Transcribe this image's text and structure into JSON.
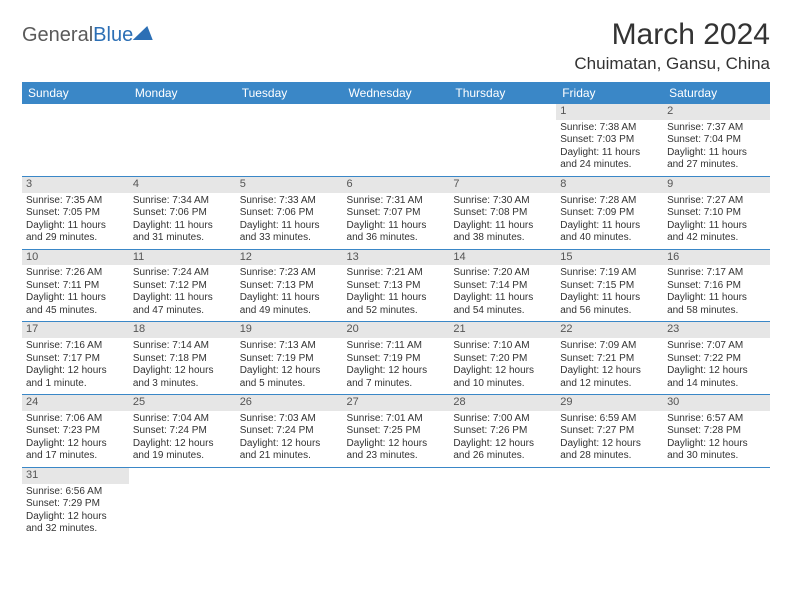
{
  "logo": {
    "part1": "General",
    "part2": "Blue"
  },
  "title": "March 2024",
  "location": "Chuimatan, Gansu, China",
  "colors": {
    "header_bg": "#3a87c7",
    "header_text": "#ffffff",
    "daynum_bg": "#e6e6e6",
    "row_border": "#3a87c7",
    "logo_gray": "#5a5a5a",
    "logo_blue": "#2c6fb5",
    "body_bg": "#ffffff",
    "text": "#333333"
  },
  "typography": {
    "title_fontsize": 30,
    "location_fontsize": 17,
    "th_fontsize": 12,
    "cell_fontsize": 10
  },
  "weekdays": [
    "Sunday",
    "Monday",
    "Tuesday",
    "Wednesday",
    "Thursday",
    "Friday",
    "Saturday"
  ],
  "weeks": [
    [
      null,
      null,
      null,
      null,
      null,
      {
        "n": "1",
        "r": "Sunrise: 7:38 AM",
        "s": "Sunset: 7:03 PM",
        "d": "Daylight: 11 hours and 24 minutes."
      },
      {
        "n": "2",
        "r": "Sunrise: 7:37 AM",
        "s": "Sunset: 7:04 PM",
        "d": "Daylight: 11 hours and 27 minutes."
      }
    ],
    [
      {
        "n": "3",
        "r": "Sunrise: 7:35 AM",
        "s": "Sunset: 7:05 PM",
        "d": "Daylight: 11 hours and 29 minutes."
      },
      {
        "n": "4",
        "r": "Sunrise: 7:34 AM",
        "s": "Sunset: 7:06 PM",
        "d": "Daylight: 11 hours and 31 minutes."
      },
      {
        "n": "5",
        "r": "Sunrise: 7:33 AM",
        "s": "Sunset: 7:06 PM",
        "d": "Daylight: 11 hours and 33 minutes."
      },
      {
        "n": "6",
        "r": "Sunrise: 7:31 AM",
        "s": "Sunset: 7:07 PM",
        "d": "Daylight: 11 hours and 36 minutes."
      },
      {
        "n": "7",
        "r": "Sunrise: 7:30 AM",
        "s": "Sunset: 7:08 PM",
        "d": "Daylight: 11 hours and 38 minutes."
      },
      {
        "n": "8",
        "r": "Sunrise: 7:28 AM",
        "s": "Sunset: 7:09 PM",
        "d": "Daylight: 11 hours and 40 minutes."
      },
      {
        "n": "9",
        "r": "Sunrise: 7:27 AM",
        "s": "Sunset: 7:10 PM",
        "d": "Daylight: 11 hours and 42 minutes."
      }
    ],
    [
      {
        "n": "10",
        "r": "Sunrise: 7:26 AM",
        "s": "Sunset: 7:11 PM",
        "d": "Daylight: 11 hours and 45 minutes."
      },
      {
        "n": "11",
        "r": "Sunrise: 7:24 AM",
        "s": "Sunset: 7:12 PM",
        "d": "Daylight: 11 hours and 47 minutes."
      },
      {
        "n": "12",
        "r": "Sunrise: 7:23 AM",
        "s": "Sunset: 7:13 PM",
        "d": "Daylight: 11 hours and 49 minutes."
      },
      {
        "n": "13",
        "r": "Sunrise: 7:21 AM",
        "s": "Sunset: 7:13 PM",
        "d": "Daylight: 11 hours and 52 minutes."
      },
      {
        "n": "14",
        "r": "Sunrise: 7:20 AM",
        "s": "Sunset: 7:14 PM",
        "d": "Daylight: 11 hours and 54 minutes."
      },
      {
        "n": "15",
        "r": "Sunrise: 7:19 AM",
        "s": "Sunset: 7:15 PM",
        "d": "Daylight: 11 hours and 56 minutes."
      },
      {
        "n": "16",
        "r": "Sunrise: 7:17 AM",
        "s": "Sunset: 7:16 PM",
        "d": "Daylight: 11 hours and 58 minutes."
      }
    ],
    [
      {
        "n": "17",
        "r": "Sunrise: 7:16 AM",
        "s": "Sunset: 7:17 PM",
        "d": "Daylight: 12 hours and 1 minute."
      },
      {
        "n": "18",
        "r": "Sunrise: 7:14 AM",
        "s": "Sunset: 7:18 PM",
        "d": "Daylight: 12 hours and 3 minutes."
      },
      {
        "n": "19",
        "r": "Sunrise: 7:13 AM",
        "s": "Sunset: 7:19 PM",
        "d": "Daylight: 12 hours and 5 minutes."
      },
      {
        "n": "20",
        "r": "Sunrise: 7:11 AM",
        "s": "Sunset: 7:19 PM",
        "d": "Daylight: 12 hours and 7 minutes."
      },
      {
        "n": "21",
        "r": "Sunrise: 7:10 AM",
        "s": "Sunset: 7:20 PM",
        "d": "Daylight: 12 hours and 10 minutes."
      },
      {
        "n": "22",
        "r": "Sunrise: 7:09 AM",
        "s": "Sunset: 7:21 PM",
        "d": "Daylight: 12 hours and 12 minutes."
      },
      {
        "n": "23",
        "r": "Sunrise: 7:07 AM",
        "s": "Sunset: 7:22 PM",
        "d": "Daylight: 12 hours and 14 minutes."
      }
    ],
    [
      {
        "n": "24",
        "r": "Sunrise: 7:06 AM",
        "s": "Sunset: 7:23 PM",
        "d": "Daylight: 12 hours and 17 minutes."
      },
      {
        "n": "25",
        "r": "Sunrise: 7:04 AM",
        "s": "Sunset: 7:24 PM",
        "d": "Daylight: 12 hours and 19 minutes."
      },
      {
        "n": "26",
        "r": "Sunrise: 7:03 AM",
        "s": "Sunset: 7:24 PM",
        "d": "Daylight: 12 hours and 21 minutes."
      },
      {
        "n": "27",
        "r": "Sunrise: 7:01 AM",
        "s": "Sunset: 7:25 PM",
        "d": "Daylight: 12 hours and 23 minutes."
      },
      {
        "n": "28",
        "r": "Sunrise: 7:00 AM",
        "s": "Sunset: 7:26 PM",
        "d": "Daylight: 12 hours and 26 minutes."
      },
      {
        "n": "29",
        "r": "Sunrise: 6:59 AM",
        "s": "Sunset: 7:27 PM",
        "d": "Daylight: 12 hours and 28 minutes."
      },
      {
        "n": "30",
        "r": "Sunrise: 6:57 AM",
        "s": "Sunset: 7:28 PM",
        "d": "Daylight: 12 hours and 30 minutes."
      }
    ],
    [
      {
        "n": "31",
        "r": "Sunrise: 6:56 AM",
        "s": "Sunset: 7:29 PM",
        "d": "Daylight: 12 hours and 32 minutes."
      },
      null,
      null,
      null,
      null,
      null,
      null
    ]
  ]
}
